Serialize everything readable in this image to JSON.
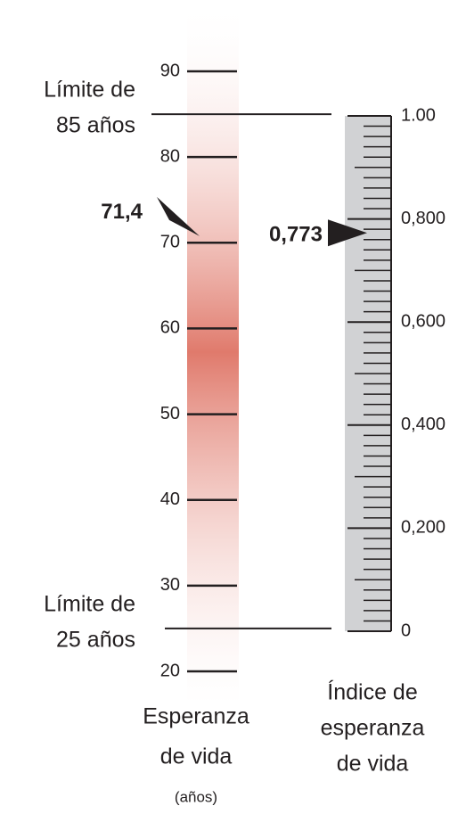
{
  "chart_data": {
    "type": "dual-scale",
    "left_scale": {
      "label_lines": [
        "Esperanza",
        "de vida"
      ],
      "unit": "(años)",
      "ylim": [
        20,
        90
      ],
      "yticks": [
        20,
        30,
        40,
        50,
        60,
        70,
        80,
        90
      ],
      "color": "#e07a6c",
      "limits": [
        {
          "value": 85,
          "label_lines": [
            "Límite de",
            "85 años"
          ]
        },
        {
          "value": 25,
          "label_lines": [
            "Límite de",
            "25 años"
          ]
        }
      ],
      "marker": {
        "value": 71.4,
        "label": "71,4"
      }
    },
    "right_scale": {
      "label_lines": [
        "Índice de",
        "esperanza",
        "de vida"
      ],
      "ylim": [
        0,
        1
      ],
      "yticks": [
        {
          "value": 1,
          "label": "1.00"
        },
        {
          "value": 0.8,
          "label": "0,800"
        },
        {
          "value": 0.6,
          "label": "0,600"
        },
        {
          "value": 0.4,
          "label": "0,400"
        },
        {
          "value": 0.2,
          "label": "0,200"
        },
        0
      ],
      "color": "#d1d2d4",
      "marker": {
        "value": 0.773,
        "label": "0,773"
      }
    }
  }
}
